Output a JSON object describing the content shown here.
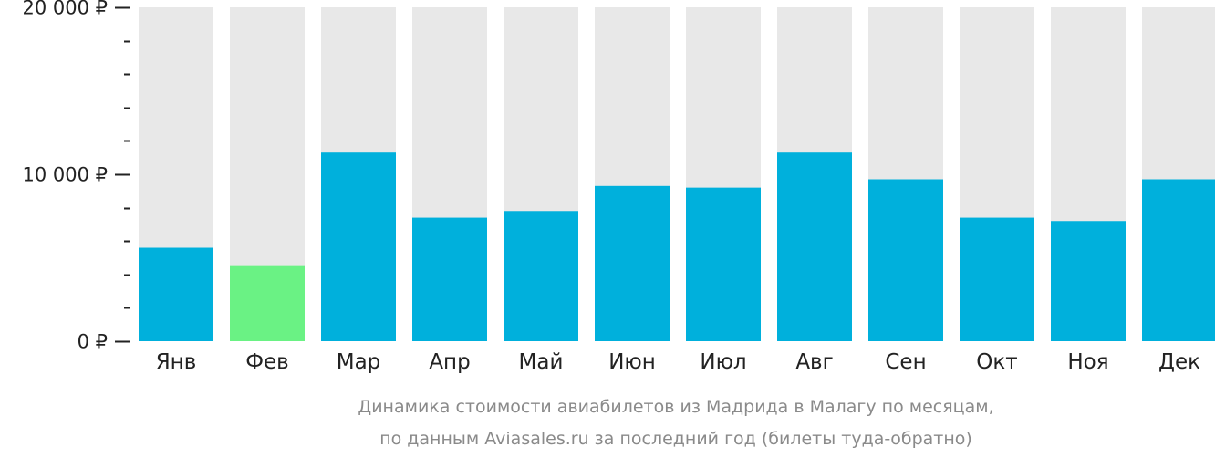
{
  "colors": {
    "bar": "#00b0dc",
    "bar_min": "#6af284",
    "track": "#e8e8e8",
    "axis_text": "#222222",
    "caption_text": "#8a8a8a"
  },
  "caption": {
    "line1": "Динамика стоимости авиабилетов из Мадрида в Малагу по месяцам,",
    "line2": "по данным Aviasales.ru за последний год (билеты туда-обратно)"
  },
  "chart_data": {
    "type": "bar",
    "categories": [
      "Янв",
      "Фев",
      "Мар",
      "Апр",
      "Май",
      "Июн",
      "Июл",
      "Авг",
      "Сен",
      "Окт",
      "Ноя",
      "Дек"
    ],
    "values": [
      5600,
      4500,
      11300,
      7400,
      7800,
      9300,
      9200,
      11300,
      9700,
      7400,
      7200,
      9700
    ],
    "min_index": 1,
    "ylim": [
      0,
      20000
    ],
    "yticks": [
      {
        "value": 0,
        "label": "0 ₽"
      },
      {
        "value": 10000,
        "label": "10 000 ₽"
      },
      {
        "value": 20000,
        "label": "20 000 ₽"
      }
    ],
    "minor_tick_step": 2000,
    "title": "",
    "xlabel": "",
    "ylabel": ""
  }
}
